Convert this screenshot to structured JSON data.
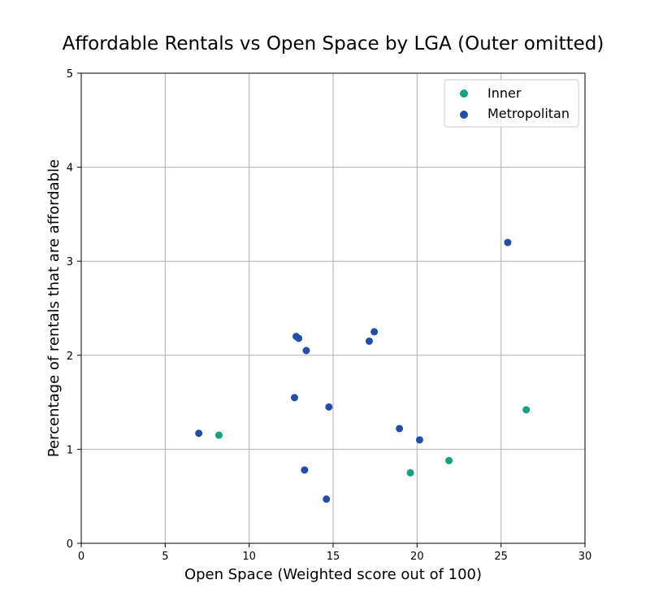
{
  "chart_data": {
    "type": "scatter",
    "title": "Affordable Rentals vs Open Space by LGA (Outer omitted)",
    "xlabel": "Open Space (Weighted score out of 100)",
    "ylabel": "Percentage of rentals that are affordable",
    "xlim": [
      0,
      30
    ],
    "ylim": [
      0,
      5
    ],
    "xticks": [
      0,
      5,
      10,
      15,
      20,
      25,
      30
    ],
    "yticks": [
      0,
      1,
      2,
      3,
      4,
      5
    ],
    "grid": true,
    "legend_position": "top-right",
    "series": [
      {
        "name": "Inner",
        "color": "#10a37f",
        "points": [
          {
            "x": 8.2,
            "y": 1.15
          },
          {
            "x": 19.6,
            "y": 0.75
          },
          {
            "x": 21.9,
            "y": 0.88
          },
          {
            "x": 26.5,
            "y": 1.42
          }
        ]
      },
      {
        "name": "Metropolitan",
        "color": "#1f4faa",
        "points": [
          {
            "x": 7.0,
            "y": 1.17
          },
          {
            "x": 12.7,
            "y": 1.55
          },
          {
            "x": 12.8,
            "y": 2.2
          },
          {
            "x": 12.95,
            "y": 2.18
          },
          {
            "x": 13.3,
            "y": 0.78
          },
          {
            "x": 13.4,
            "y": 2.05
          },
          {
            "x": 14.6,
            "y": 0.47
          },
          {
            "x": 14.75,
            "y": 1.45
          },
          {
            "x": 17.15,
            "y": 2.15
          },
          {
            "x": 17.45,
            "y": 2.25
          },
          {
            "x": 18.95,
            "y": 1.22
          },
          {
            "x": 20.15,
            "y": 1.1
          },
          {
            "x": 25.4,
            "y": 3.2
          }
        ]
      }
    ]
  }
}
